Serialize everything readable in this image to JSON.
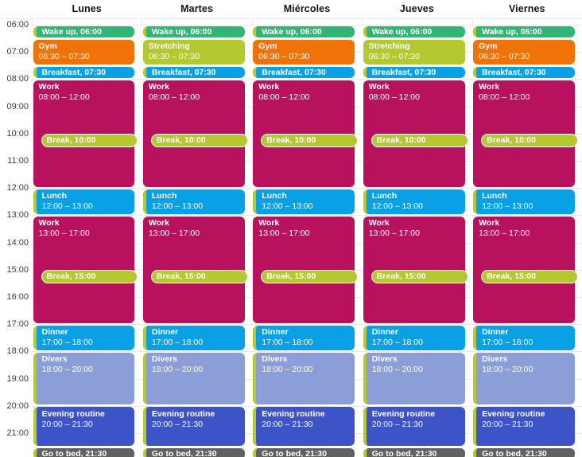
{
  "view": {
    "name": "weekly-schedule-calendar"
  },
  "colors": {
    "green": "#32B678",
    "orange": "#F0730A",
    "lime": "#B3C831",
    "blue": "#0AA0E6",
    "magenta": "#B8125F",
    "periwinkle": "#8C9ED8",
    "indigo": "#3D53C8",
    "gray": "#616161",
    "gridline": "#E8E8E8",
    "header_text": "#141414",
    "time_text": "#3C3C3C",
    "event_text": "#FFFFFF",
    "pill_border": "#FFFFFF"
  },
  "time_axis": {
    "labels": [
      "06:00",
      "07:00",
      "08:00",
      "09:00",
      "10:00",
      "11:00",
      "12:00",
      "13:00",
      "14:00",
      "15:00",
      "16:00",
      "17:00",
      "18:00",
      "19:00",
      "20:00",
      "21:00"
    ]
  },
  "days": [
    {
      "label": "Lunes",
      "events": [
        {
          "name": "wake-up",
          "title": "Wake up, 06:00",
          "single": true,
          "start": 6,
          "end": 6.5,
          "color": "green",
          "strip": true
        },
        {
          "name": "gym",
          "title": "Gym",
          "time": "06:30 – 07:30",
          "start": 6.5,
          "end": 7.5,
          "color": "orange",
          "strip": false
        },
        {
          "name": "breakfast",
          "title": "Breakfast, 07:30",
          "single": true,
          "start": 7.5,
          "end": 8,
          "color": "blue",
          "strip": true
        },
        {
          "name": "work-morning",
          "title": "Work",
          "time": "08:00 – 12:00",
          "start": 8,
          "end": 12,
          "color": "magenta",
          "strip": false
        },
        {
          "name": "break-morning",
          "title": "Break, 10:00",
          "pill": true,
          "start": 10,
          "end": 10.5,
          "color": "lime"
        },
        {
          "name": "lunch",
          "title": "Lunch",
          "time": "12:00 – 13:00",
          "start": 12,
          "end": 13,
          "color": "blue",
          "strip": true
        },
        {
          "name": "work-afternoon",
          "title": "Work",
          "time": "13:00 – 17:00",
          "start": 13,
          "end": 17,
          "color": "magenta",
          "strip": false
        },
        {
          "name": "break-afternoon",
          "title": "Break, 15:00",
          "pill": true,
          "start": 15,
          "end": 15.5,
          "color": "lime"
        },
        {
          "name": "dinner",
          "title": "Dinner",
          "time": "17:00 – 18:00",
          "start": 17,
          "end": 18,
          "color": "blue",
          "strip": true
        },
        {
          "name": "divers",
          "title": "Divers",
          "time": "18:00 – 20:00",
          "start": 18,
          "end": 20,
          "color": "periwinkle",
          "strip": true
        },
        {
          "name": "evening-routine",
          "title": "Evening routine",
          "time": "20:00 – 21:30",
          "start": 20,
          "end": 21.5,
          "color": "indigo",
          "strip": true
        },
        {
          "name": "go-to-bed",
          "title": "Go to bed, 21:30",
          "single": true,
          "start": 21.5,
          "end": 22,
          "color": "gray",
          "strip": true
        }
      ]
    },
    {
      "label": "Martes",
      "events": [
        {
          "name": "wake-up",
          "title": "Wake up, 06:00",
          "single": true,
          "start": 6,
          "end": 6.5,
          "color": "green",
          "strip": true
        },
        {
          "name": "stretching",
          "title": "Stretching",
          "time": "06:30 – 07:30",
          "start": 6.5,
          "end": 7.5,
          "color": "lime",
          "strip": false
        },
        {
          "name": "breakfast",
          "title": "Breakfast, 07:30",
          "single": true,
          "start": 7.5,
          "end": 8,
          "color": "blue",
          "strip": true
        },
        {
          "name": "work-morning",
          "title": "Work",
          "time": "08:00 – 12:00",
          "start": 8,
          "end": 12,
          "color": "magenta",
          "strip": false
        },
        {
          "name": "break-morning",
          "title": "Break, 10:00",
          "pill": true,
          "start": 10,
          "end": 10.5,
          "color": "lime"
        },
        {
          "name": "lunch",
          "title": "Lunch",
          "time": "12:00 – 13:00",
          "start": 12,
          "end": 13,
          "color": "blue",
          "strip": true
        },
        {
          "name": "work-afternoon",
          "title": "Work",
          "time": "13:00 – 17:00",
          "start": 13,
          "end": 17,
          "color": "magenta",
          "strip": false
        },
        {
          "name": "break-afternoon",
          "title": "Break, 15:00",
          "pill": true,
          "start": 15,
          "end": 15.5,
          "color": "lime"
        },
        {
          "name": "dinner",
          "title": "Dinner",
          "time": "17:00 – 18:00",
          "start": 17,
          "end": 18,
          "color": "blue",
          "strip": true
        },
        {
          "name": "divers",
          "title": "Divers",
          "time": "18:00 – 20:00",
          "start": 18,
          "end": 20,
          "color": "periwinkle",
          "strip": true
        },
        {
          "name": "evening-routine",
          "title": "Evening routine",
          "time": "20:00 – 21:30",
          "start": 20,
          "end": 21.5,
          "color": "indigo",
          "strip": true
        },
        {
          "name": "go-to-bed",
          "title": "Go to bed, 21:30",
          "single": true,
          "start": 21.5,
          "end": 22,
          "color": "gray",
          "strip": true
        }
      ]
    },
    {
      "label": "Miércoles",
      "events": [
        {
          "name": "wake-up",
          "title": "Wake up, 06:00",
          "single": true,
          "start": 6,
          "end": 6.5,
          "color": "green",
          "strip": true
        },
        {
          "name": "gym",
          "title": "Gym",
          "time": "06:30 – 07:30",
          "start": 6.5,
          "end": 7.5,
          "color": "orange",
          "strip": false
        },
        {
          "name": "breakfast",
          "title": "Breakfast, 07:30",
          "single": true,
          "start": 7.5,
          "end": 8,
          "color": "blue",
          "strip": true
        },
        {
          "name": "work-morning",
          "title": "Work",
          "time": "08:00 – 12:00",
          "start": 8,
          "end": 12,
          "color": "magenta",
          "strip": false
        },
        {
          "name": "break-morning",
          "title": "Break, 10:00",
          "pill": true,
          "start": 10,
          "end": 10.5,
          "color": "lime"
        },
        {
          "name": "lunch",
          "title": "Lunch",
          "time": "12:00 – 13:00",
          "start": 12,
          "end": 13,
          "color": "blue",
          "strip": true
        },
        {
          "name": "work-afternoon",
          "title": "Work",
          "time": "13:00 – 17:00",
          "start": 13,
          "end": 17,
          "color": "magenta",
          "strip": false
        },
        {
          "name": "break-afternoon",
          "title": "Break, 15:00",
          "pill": true,
          "start": 15,
          "end": 15.5,
          "color": "lime"
        },
        {
          "name": "dinner",
          "title": "Dinner",
          "time": "17:00 – 18:00",
          "start": 17,
          "end": 18,
          "color": "blue",
          "strip": true
        },
        {
          "name": "divers",
          "title": "Divers",
          "time": "18:00 – 20:00",
          "start": 18,
          "end": 20,
          "color": "periwinkle",
          "strip": true
        },
        {
          "name": "evening-routine",
          "title": "Evening routine",
          "time": "20:00 – 21:30",
          "start": 20,
          "end": 21.5,
          "color": "indigo",
          "strip": true
        },
        {
          "name": "go-to-bed",
          "title": "Go to bed, 21:30",
          "single": true,
          "start": 21.5,
          "end": 22,
          "color": "gray",
          "strip": true
        }
      ]
    },
    {
      "label": "Jueves",
      "events": [
        {
          "name": "wake-up",
          "title": "Wake up, 06:00",
          "single": true,
          "start": 6,
          "end": 6.5,
          "color": "green",
          "strip": true
        },
        {
          "name": "stretching",
          "title": "Stretching",
          "time": "06:30 – 07:30",
          "start": 6.5,
          "end": 7.5,
          "color": "lime",
          "strip": false
        },
        {
          "name": "breakfast",
          "title": "Breakfast, 07:30",
          "single": true,
          "start": 7.5,
          "end": 8,
          "color": "blue",
          "strip": true
        },
        {
          "name": "work-morning",
          "title": "Work",
          "time": "08:00 – 12:00",
          "start": 8,
          "end": 12,
          "color": "magenta",
          "strip": false
        },
        {
          "name": "break-morning",
          "title": "Break, 10:00",
          "pill": true,
          "start": 10,
          "end": 10.5,
          "color": "lime"
        },
        {
          "name": "lunch",
          "title": "Lunch",
          "time": "12:00 – 13:00",
          "start": 12,
          "end": 13,
          "color": "blue",
          "strip": true
        },
        {
          "name": "work-afternoon",
          "title": "Work",
          "time": "13:00 – 17:00",
          "start": 13,
          "end": 17,
          "color": "magenta",
          "strip": false
        },
        {
          "name": "break-afternoon",
          "title": "Break, 15:00",
          "pill": true,
          "start": 15,
          "end": 15.5,
          "color": "lime"
        },
        {
          "name": "dinner",
          "title": "Dinner",
          "time": "17:00 – 18:00",
          "start": 17,
          "end": 18,
          "color": "blue",
          "strip": true
        },
        {
          "name": "divers",
          "title": "Divers",
          "time": "18:00 – 20:00",
          "start": 18,
          "end": 20,
          "color": "periwinkle",
          "strip": true
        },
        {
          "name": "evening-routine",
          "title": "Evening routine",
          "time": "20:00 – 21:30",
          "start": 20,
          "end": 21.5,
          "color": "indigo",
          "strip": true
        },
        {
          "name": "go-to-bed",
          "title": "Go to bed, 21:30",
          "single": true,
          "start": 21.5,
          "end": 22,
          "color": "gray",
          "strip": true
        }
      ]
    },
    {
      "label": "Viernes",
      "events": [
        {
          "name": "wake-up",
          "title": "Wake up, 06:00",
          "single": true,
          "start": 6,
          "end": 6.5,
          "color": "green",
          "strip": true
        },
        {
          "name": "gym",
          "title": "Gym",
          "time": "06:30 – 07:30",
          "start": 6.5,
          "end": 7.5,
          "color": "orange",
          "strip": false
        },
        {
          "name": "breakfast",
          "title": "Breakfast, 07:30",
          "single": true,
          "start": 7.5,
          "end": 8,
          "color": "blue",
          "strip": true
        },
        {
          "name": "work-morning",
          "title": "Work",
          "time": "08:00 – 12:00",
          "start": 8,
          "end": 12,
          "color": "magenta",
          "strip": false
        },
        {
          "name": "break-morning",
          "title": "Break, 10:00",
          "pill": true,
          "start": 10,
          "end": 10.5,
          "color": "lime"
        },
        {
          "name": "lunch",
          "title": "Lunch",
          "time": "12:00 – 13:00",
          "start": 12,
          "end": 13,
          "color": "blue",
          "strip": true
        },
        {
          "name": "work-afternoon",
          "title": "Work",
          "time": "13:00 – 17:00",
          "start": 13,
          "end": 17,
          "color": "magenta",
          "strip": false
        },
        {
          "name": "break-afternoon",
          "title": "Break, 15:00",
          "pill": true,
          "start": 15,
          "end": 15.5,
          "color": "lime"
        },
        {
          "name": "dinner",
          "title": "Dinner",
          "time": "17:00 – 18:00",
          "start": 17,
          "end": 18,
          "color": "blue",
          "strip": true
        },
        {
          "name": "divers",
          "title": "Divers",
          "time": "18:00 – 20:00",
          "start": 18,
          "end": 20,
          "color": "periwinkle",
          "strip": true
        },
        {
          "name": "evening-routine",
          "title": "Evening routine",
          "time": "20:00 – 21:30",
          "start": 20,
          "end": 21.5,
          "color": "indigo",
          "strip": true
        },
        {
          "name": "go-to-bed",
          "title": "Go to bed, 21:30",
          "single": true,
          "start": 21.5,
          "end": 22,
          "color": "gray",
          "strip": true
        }
      ]
    }
  ]
}
